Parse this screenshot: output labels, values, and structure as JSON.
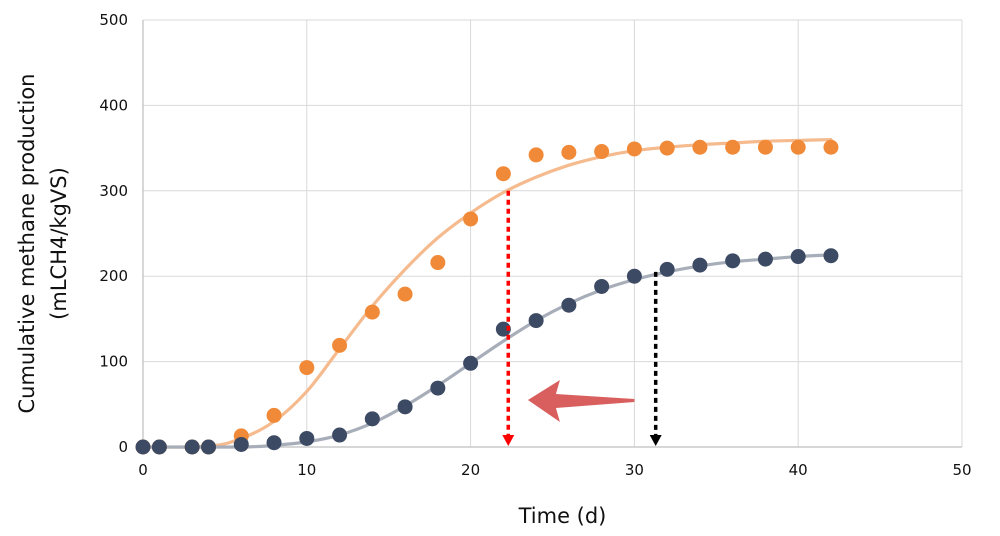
{
  "chart_data": {
    "type": "scatter",
    "xlabel": "Time (d)",
    "ylabel_lines": [
      "Cumulative methane production",
      "(mLCH4/kgVS)"
    ],
    "xlim": [
      0,
      50
    ],
    "ylim": [
      0,
      500
    ],
    "x_ticks": [
      "0",
      "10",
      "20",
      "30",
      "40",
      "50"
    ],
    "y_ticks": [
      "0",
      "100",
      "200",
      "300",
      "400",
      "500"
    ],
    "grid": true,
    "legend": "none",
    "series": [
      {
        "color": "#f08a38",
        "fit_color": "#f5bb8e",
        "points": [
          [
            0,
            0
          ],
          [
            1,
            0
          ],
          [
            3,
            0
          ],
          [
            4,
            0
          ],
          [
            6,
            13
          ],
          [
            8,
            37
          ],
          [
            10,
            93
          ],
          [
            12,
            119
          ],
          [
            14,
            158
          ],
          [
            16,
            179
          ],
          [
            18,
            216
          ],
          [
            20,
            267
          ],
          [
            22,
            320
          ],
          [
            24,
            342
          ],
          [
            26,
            345
          ],
          [
            28,
            346
          ],
          [
            30,
            349
          ],
          [
            32,
            350
          ],
          [
            34,
            351
          ],
          [
            36,
            351
          ],
          [
            38,
            351
          ],
          [
            40,
            351
          ],
          [
            42,
            351
          ]
        ],
        "fit": [
          [
            0,
            0
          ],
          [
            4,
            1
          ],
          [
            6,
            10
          ],
          [
            8,
            30
          ],
          [
            10,
            65
          ],
          [
            12,
            115
          ],
          [
            14,
            165
          ],
          [
            16,
            208
          ],
          [
            18,
            245
          ],
          [
            20,
            274
          ],
          [
            22,
            298
          ],
          [
            24,
            316
          ],
          [
            26,
            330
          ],
          [
            28,
            340
          ],
          [
            30,
            347
          ],
          [
            32,
            351
          ],
          [
            34,
            354
          ],
          [
            36,
            356
          ],
          [
            38,
            358
          ],
          [
            40,
            359
          ],
          [
            42,
            360
          ]
        ]
      },
      {
        "color": "#3d4a63",
        "fit_color": "#a8aeb9",
        "points": [
          [
            0,
            0
          ],
          [
            1,
            0
          ],
          [
            3,
            0
          ],
          [
            4,
            0
          ],
          [
            6,
            3
          ],
          [
            8,
            5
          ],
          [
            10,
            10
          ],
          [
            12,
            14
          ],
          [
            14,
            33
          ],
          [
            16,
            47
          ],
          [
            18,
            69
          ],
          [
            20,
            98
          ],
          [
            22,
            138
          ],
          [
            24,
            148
          ],
          [
            26,
            166
          ],
          [
            28,
            188
          ],
          [
            30,
            200
          ],
          [
            32,
            208
          ],
          [
            34,
            213
          ],
          [
            36,
            218
          ],
          [
            38,
            220
          ],
          [
            40,
            223
          ],
          [
            42,
            224
          ]
        ],
        "fit": [
          [
            0,
            0
          ],
          [
            6,
            0
          ],
          [
            8,
            2
          ],
          [
            10,
            6
          ],
          [
            12,
            14
          ],
          [
            14,
            28
          ],
          [
            16,
            48
          ],
          [
            18,
            72
          ],
          [
            20,
            98
          ],
          [
            22,
            124
          ],
          [
            24,
            148
          ],
          [
            26,
            168
          ],
          [
            28,
            184
          ],
          [
            30,
            196
          ],
          [
            32,
            205
          ],
          [
            34,
            212
          ],
          [
            36,
            217
          ],
          [
            38,
            220
          ],
          [
            40,
            223
          ],
          [
            42,
            225
          ]
        ]
      }
    ],
    "annotations": {
      "orange_drop": {
        "x": 22.3,
        "y_from": 300,
        "color": "#ff0000"
      },
      "dark_drop": {
        "x": 31.3,
        "y_from": 205,
        "color": "#000000"
      },
      "shift_arrow": {
        "from_x": 30,
        "to_x": 23.5,
        "y": 55,
        "color": "#d95f5f"
      }
    }
  }
}
